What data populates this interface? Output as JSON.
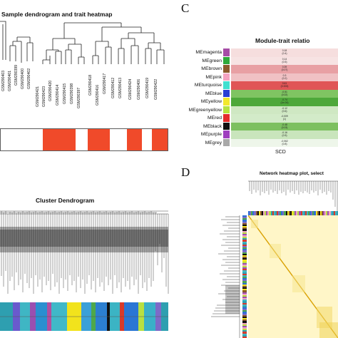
{
  "panelA": {
    "title": "Sample dendrogram and trait heatmap",
    "samples": [
      "GSM290403",
      "GSM290401",
      "GSM290399",
      "GSM290400",
      "GSM290402",
      "GSM290421",
      "GSM290423",
      "GSM290420",
      "GSM290414",
      "GSM290415",
      "GSM290398",
      "GSM290397",
      "GSM290418",
      "GSM290416",
      "GSM290417",
      "GSM290412",
      "GSM290413",
      "GSM290424",
      "GSM290406",
      "GSM290419",
      "GSM290422"
    ],
    "trait_bar_colors": [
      "#ffffff",
      "#f04a2a"
    ]
  },
  "panelB": {
    "title": "Cluster Dendrogram"
  },
  "panelC": {
    "letter": "C",
    "title": "Module-trait relatio",
    "xlabel": "SCD",
    "modules": [
      {
        "name": "MEmagenta",
        "color": "#a64ca6",
        "cell": "#f6dede",
        "line1": "0.18",
        "line2": "(0.4)"
      },
      {
        "name": "MEgreen",
        "color": "#2eaa3a",
        "cell": "#f7e3e3",
        "line1": "0.14",
        "line2": "(0.5)"
      },
      {
        "name": "MEbrown",
        "color": "#8b5a2b",
        "cell": "#e8a0a4",
        "line1": "0.39",
        "line2": "(0.07)"
      },
      {
        "name": "MEpink",
        "color": "#f4a3c0",
        "cell": "#f0c1c4",
        "line1": "0.3",
        "line2": "(0.2)"
      },
      {
        "name": "MEturquoise",
        "color": "#40e0d0",
        "cell": "#e05556",
        "line1": "0.61",
        "line2": "(0.003)"
      },
      {
        "name": "MEblue",
        "color": "#2a3fd4",
        "cell": "#7fc462",
        "line1": "-0.51",
        "line2": "(0.02)"
      },
      {
        "name": "MEyellow",
        "color": "#f3e82c",
        "cell": "#4da83a",
        "line1": "-0.74",
        "line2": "(1e-04)"
      },
      {
        "name": "MEgreenyellow",
        "color": "#b6e23f",
        "cell": "#cfe8c3",
        "line1": "-0.12",
        "line2": "(0.6)"
      },
      {
        "name": "MEred",
        "color": "#e52b2b",
        "cell": "#d3ebc9",
        "line1": "-0.009",
        "line2": "(1)"
      },
      {
        "name": "MEblack",
        "color": "#111111",
        "cell": "#7cc05f",
        "line1": "-0.48",
        "line2": "(0.03)"
      },
      {
        "name": "MEpurple",
        "color": "#9f3fbf",
        "cell": "#c9e5bc",
        "line1": "-0.16",
        "line2": "(0.5)"
      },
      {
        "name": "MEgrey",
        "color": "#a9a9a9",
        "cell": "#eef6ea",
        "line1": "-0.062",
        "line2": "(0.8)"
      }
    ]
  },
  "panelD": {
    "letter": "D",
    "title": "Network heatmap plot, select"
  }
}
